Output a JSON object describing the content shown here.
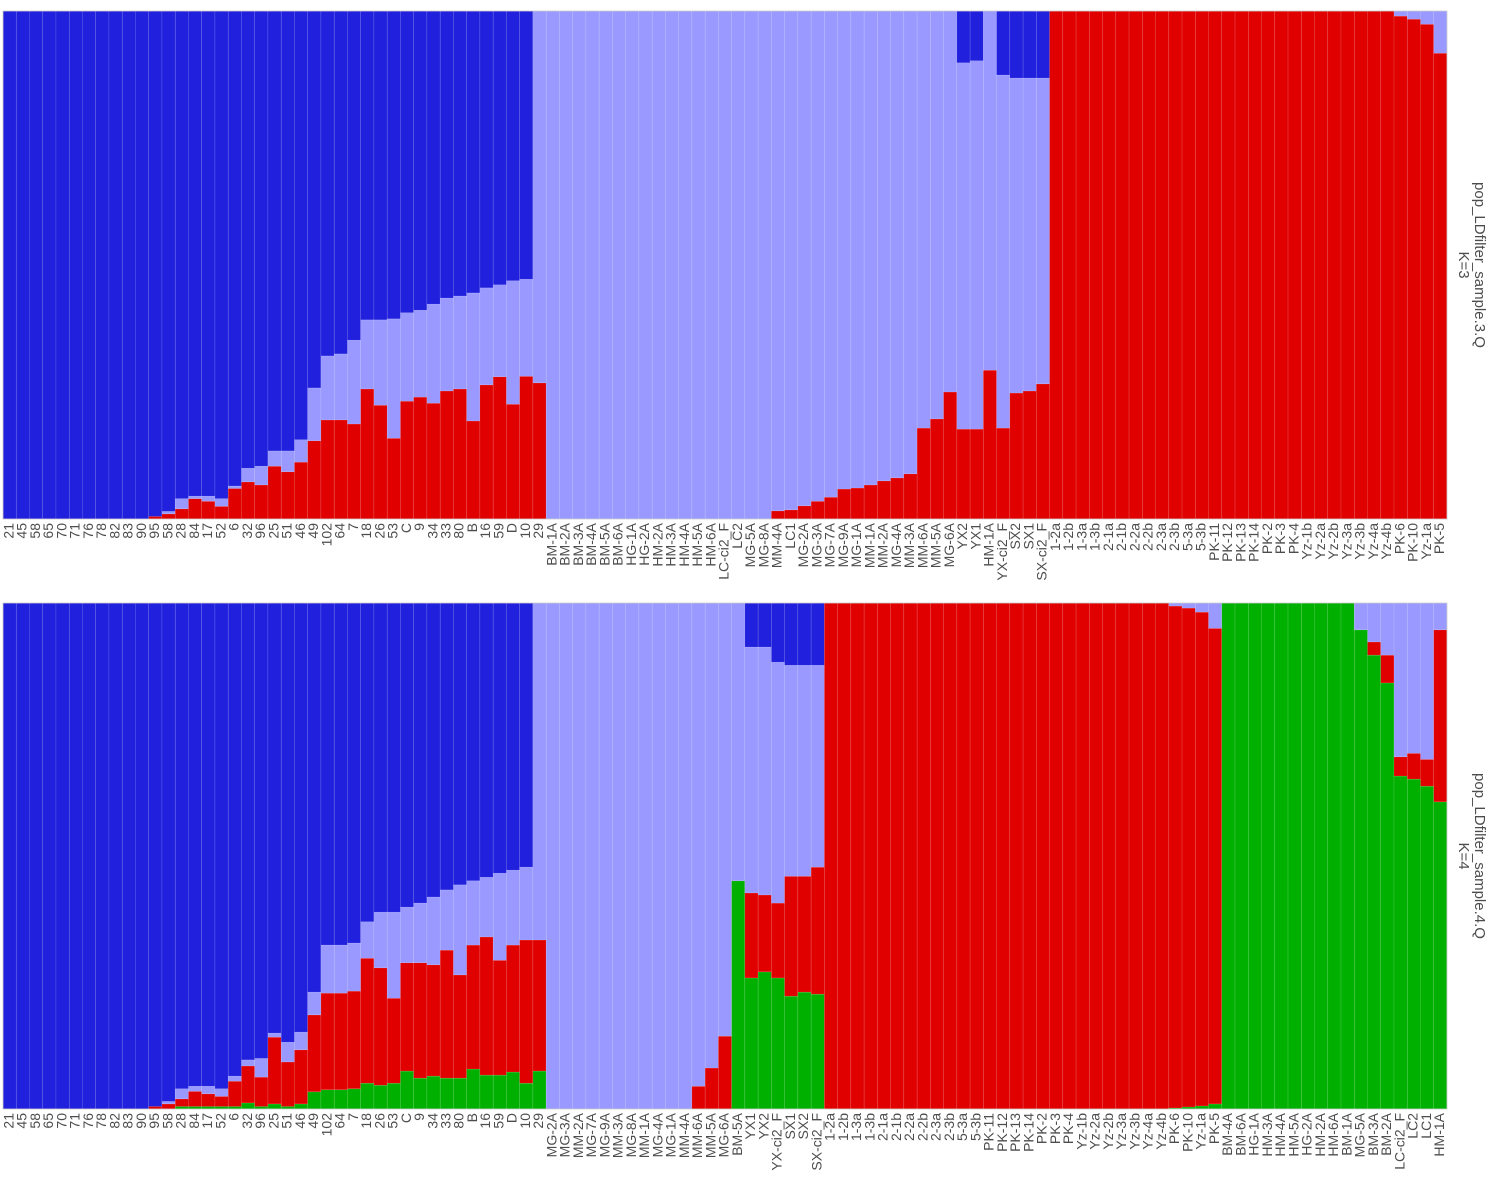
{
  "chart_data": [
    {
      "type": "bar",
      "stacked": true,
      "title": "pop_LDfilter_sample.3.Q",
      "subtitle": "K=3",
      "ylim": [
        0,
        1
      ],
      "categories": [
        "21",
        "45",
        "58",
        "65",
        "70",
        "71",
        "76",
        "78",
        "82",
        "83",
        "90",
        "95",
        "58",
        "28",
        "84",
        "17",
        "52",
        "6",
        "32",
        "96",
        "25",
        "51",
        "46",
        "49",
        "102",
        "64",
        "7",
        "18",
        "26",
        "53",
        "C",
        "9",
        "34",
        "33",
        "80",
        "B",
        "16",
        "59",
        "D",
        "10",
        "29",
        "BM-1A",
        "BM-2A",
        "BM-3A",
        "BM-4A",
        "BM-5A",
        "BM-6A",
        "HG-1A",
        "HG-2A",
        "HM-2A",
        "HM-3A",
        "HM-4A",
        "HM-5A",
        "HM-6A",
        "LC-ci2_F",
        "LC2",
        "MG-5A",
        "MG-8A",
        "MM-4A",
        "LC1",
        "MG-2A",
        "MG-3A",
        "MG-7A",
        "MG-9A",
        "MG-1A",
        "MM-1A",
        "MM-2A",
        "MG-4A",
        "MM-3A",
        "MM-6A",
        "MM-5A",
        "MG-6A",
        "YX2",
        "YX1",
        "HM-1A",
        "YX-ci2_F",
        "SX2",
        "SX1",
        "SX-ci2_F",
        "1-2a",
        "1-2b",
        "1-3a",
        "1-3b",
        "2-1a",
        "2-1b",
        "2-2a",
        "2-2b",
        "2-3a",
        "2-3b",
        "5-3a",
        "5-3b",
        "PK-11",
        "PK-12",
        "PK-13",
        "PK-14",
        "PK-2",
        "PK-3",
        "PK-4",
        "Yz-1b",
        "Yz-2a",
        "Yz-2b",
        "Yz-3a",
        "Yz-3b",
        "Yz-4a",
        "Yz-4b",
        "PK-6",
        "PK-10",
        "Yz-1a",
        "PK-5"
      ],
      "series": [
        {
          "color": "#e00000",
          "values": [
            0,
            0,
            0,
            0,
            0,
            0,
            0,
            0,
            0,
            0,
            0,
            0.005,
            0.01,
            0.02,
            0.04,
            0.035,
            0.025,
            0.06,
            0.073,
            0.067,
            0.104,
            0.093,
            0.112,
            0.154,
            0.195,
            0.195,
            0.187,
            0.256,
            0.224,
            0.159,
            0.232,
            0.24,
            0.228,
            0.252,
            0.256,
            0.193,
            0.264,
            0.28,
            0.226,
            0.281,
            0.268,
            0,
            0,
            0,
            0,
            0,
            0,
            0,
            0,
            0,
            0,
            0,
            0,
            0,
            0,
            0,
            0,
            0,
            0.016,
            0.018,
            0.026,
            0.035,
            0.043,
            0.059,
            0.061,
            0.067,
            0.075,
            0.081,
            0.089,
            0.179,
            0.197,
            0.25,
            0.177,
            0.177,
            0.293,
            0.179,
            0.248,
            0.252,
            0.266,
            1,
            1,
            1,
            1,
            1,
            1,
            1,
            1,
            1,
            1,
            1,
            1,
            1,
            1,
            1,
            1,
            1,
            1,
            1,
            1,
            1,
            1,
            1,
            1,
            1,
            1,
            0.99,
            0.984,
            0.974,
            0.917
          ]
        },
        {
          "color": "#9999ff",
          "values": [
            0,
            0,
            0,
            0,
            0,
            0,
            0,
            0,
            0,
            0,
            0,
            0,
            0.005,
            0.02,
            0.005,
            0.01,
            0.015,
            0.005,
            0.027,
            0.037,
            0.03,
            0.041,
            0.044,
            0.104,
            0.126,
            0.13,
            0.165,
            0.136,
            0.168,
            0.235,
            0.174,
            0.171,
            0.195,
            0.183,
            0.183,
            0.252,
            0.191,
            0.181,
            0.243,
            0.191,
            0.732,
            1,
            1,
            1,
            1,
            1,
            1,
            1,
            1,
            1,
            1,
            1,
            1,
            1,
            1,
            1,
            1,
            1,
            0.984,
            0.982,
            0.974,
            0.965,
            0.957,
            0.941,
            0.939,
            0.933,
            0.925,
            0.919,
            0.911,
            0.821,
            0.803,
            0.75,
            0.721,
            0.725,
            0.707,
            0.695,
            0.62,
            0.616,
            0.602,
            0,
            0,
            0,
            0,
            0,
            0,
            0,
            0,
            0,
            0,
            0,
            0,
            0,
            0,
            0,
            0,
            0,
            0,
            0,
            0,
            0,
            0,
            0,
            0,
            0,
            0,
            0.01,
            0.016,
            0.026,
            0.083
          ]
        },
        {
          "color": "#2020dd",
          "values": [
            1,
            1,
            1,
            1,
            1,
            1,
            1,
            1,
            1,
            1,
            1,
            0.995,
            0.985,
            0.96,
            0.955,
            0.955,
            0.96,
            0.935,
            0.9,
            0.896,
            0.866,
            0.866,
            0.844,
            0.742,
            0.679,
            0.675,
            0.648,
            0.608,
            0.608,
            0.606,
            0.594,
            0.589,
            0.577,
            0.565,
            0.561,
            0.555,
            0.545,
            0.539,
            0.531,
            0.528,
            0,
            0,
            0,
            0,
            0,
            0,
            0,
            0,
            0,
            0,
            0,
            0,
            0,
            0,
            0,
            0,
            0,
            0,
            0,
            0,
            0,
            0,
            0,
            0,
            0,
            0,
            0,
            0,
            0,
            0,
            0,
            0,
            0.102,
            0.098,
            0,
            0.126,
            0.132,
            0.132,
            0.132,
            0,
            0,
            0,
            0,
            0,
            0,
            0,
            0,
            0,
            0,
            0,
            0,
            0,
            0,
            0,
            0,
            0,
            0,
            0,
            0,
            0,
            0,
            0,
            0,
            0,
            0,
            0,
            0,
            0,
            0
          ]
        }
      ]
    },
    {
      "type": "bar",
      "stacked": true,
      "title": "pop_LDfilter_sample.4.Q",
      "subtitle": "K=4",
      "ylim": [
        0,
        1
      ],
      "categories": [
        "21",
        "45",
        "58",
        "65",
        "70",
        "71",
        "76",
        "78",
        "82",
        "83",
        "90",
        "95",
        "58",
        "28",
        "84",
        "17",
        "52",
        "6",
        "32",
        "96",
        "25",
        "51",
        "46",
        "49",
        "102",
        "64",
        "7",
        "18",
        "26",
        "53",
        "C",
        "9",
        "34",
        "33",
        "80",
        "B",
        "16",
        "59",
        "D",
        "10",
        "29",
        "MG-2A",
        "MG-3A",
        "MM-2A",
        "MG-7A",
        "MG-9A",
        "MM-3A",
        "MG-8A",
        "MM-1A",
        "MG-4A",
        "MG-1A",
        "MM-4A",
        "MM-6A",
        "MM-5A",
        "MG-6A",
        "BM-5A",
        "YX1",
        "YX2",
        "YX-ci2_F",
        "SX1",
        "SX2",
        "SX-ci2_F",
        "1-2a",
        "1-2b",
        "1-3a",
        "1-3b",
        "2-1a",
        "2-1b",
        "2-2a",
        "2-2b",
        "2-3a",
        "2-3b",
        "5-3a",
        "5-3b",
        "PK-11",
        "PK-12",
        "PK-13",
        "PK-14",
        "PK-2",
        "PK-3",
        "PK-4",
        "Yz-1b",
        "Yz-2a",
        "Yz-2b",
        "Yz-3a",
        "Yz-3b",
        "Yz-4a",
        "Yz-4b",
        "PK-6",
        "PK-10",
        "Yz-1a",
        "PK-5",
        "BM-4A",
        "BM-6A",
        "HG-1A",
        "HM-3A",
        "HM-4A",
        "HM-5A",
        "HG-2A",
        "HM-2A",
        "HM-6A",
        "BM-1A",
        "MG-5A",
        "BM-3A",
        "BM-2A",
        "LC-ci2_F",
        "LC2",
        "LC1",
        "HM-1A"
      ],
      "series": [
        {
          "color": "#00b000",
          "values": [
            0,
            0,
            0,
            0,
            0,
            0,
            0,
            0,
            0,
            0,
            0,
            0,
            0,
            0.005,
            0.005,
            0.005,
            0.005,
            0.005,
            0.012,
            0.005,
            0.01,
            0.005,
            0.01,
            0.034,
            0.038,
            0.038,
            0.04,
            0.051,
            0.047,
            0.051,
            0.075,
            0.061,
            0.065,
            0.061,
            0.061,
            0.079,
            0.067,
            0.067,
            0.073,
            0.051,
            0.075,
            0,
            0,
            0,
            0,
            0,
            0,
            0,
            0,
            0,
            0,
            0,
            0,
            0,
            0,
            0.451,
            0.259,
            0.271,
            0.259,
            0.223,
            0.231,
            0.227,
            0,
            0,
            0,
            0,
            0,
            0,
            0,
            0,
            0,
            0,
            0,
            0,
            0,
            0,
            0,
            0,
            0,
            0,
            0,
            0,
            0,
            0,
            0,
            0,
            0,
            0,
            0.002,
            0.004,
            0.006,
            0.01,
            1,
            1,
            1,
            1,
            1,
            1,
            1,
            1,
            1,
            1,
            0.947,
            0.897,
            0.842,
            0.658,
            0.652,
            0.638,
            0.607
          ]
        },
        {
          "color": "#e00000",
          "values": [
            0,
            0,
            0,
            0,
            0,
            0,
            0,
            0,
            0,
            0,
            0,
            0.005,
            0.01,
            0.015,
            0.03,
            0.025,
            0.02,
            0.05,
            0.073,
            0.058,
            0.132,
            0.088,
            0.107,
            0.152,
            0.191,
            0.191,
            0.193,
            0.247,
            0.232,
            0.168,
            0.214,
            0.228,
            0.22,
            0.253,
            0.204,
            0.245,
            0.273,
            0.227,
            0.251,
            0.283,
            0.259,
            0,
            0,
            0,
            0,
            0,
            0,
            0,
            0,
            0,
            0,
            0,
            0.045,
            0.081,
            0.144,
            0,
            0.168,
            0.152,
            0.148,
            0.237,
            0.229,
            0.251,
            1,
            1,
            1,
            1,
            1,
            1,
            1,
            1,
            1,
            1,
            1,
            1,
            1,
            1,
            1,
            1,
            1,
            1,
            1,
            1,
            1,
            1,
            1,
            1,
            1,
            1,
            0.992,
            0.986,
            0.976,
            0.94,
            0,
            0,
            0,
            0,
            0,
            0,
            0,
            0,
            0,
            0,
            0,
            0.026,
            0.055,
            0.038,
            0.051,
            0.053,
            0.34
          ]
        },
        {
          "color": "#9999ff",
          "values": [
            0,
            0,
            0,
            0,
            0,
            0,
            0,
            0,
            0,
            0,
            0,
            0,
            0.005,
            0.02,
            0.01,
            0.015,
            0.015,
            0.01,
            0.012,
            0.037,
            0.008,
            0.039,
            0.035,
            0.045,
            0.095,
            0.095,
            0.095,
            0.072,
            0.11,
            0.17,
            0.11,
            0.118,
            0.134,
            0.119,
            0.178,
            0.127,
            0.118,
            0.172,
            0.148,
            0.144,
            0.666,
            1,
            1,
            1,
            1,
            1,
            1,
            1,
            1,
            1,
            1,
            1,
            0.955,
            0.919,
            0.856,
            0.549,
            0.486,
            0.49,
            0.476,
            0.417,
            0.417,
            0.399,
            0,
            0,
            0,
            0,
            0,
            0,
            0,
            0,
            0,
            0,
            0,
            0,
            0,
            0,
            0,
            0,
            0,
            0,
            0,
            0,
            0,
            0,
            0,
            0,
            0,
            0,
            0.006,
            0.01,
            0.018,
            0.05,
            0,
            0,
            0,
            0,
            0,
            0,
            0,
            0,
            0,
            0,
            0.053,
            0.077,
            0.103,
            0.304,
            0.297,
            0.309,
            0.053
          ]
        },
        {
          "color": "#2020dd",
          "values": [
            1,
            1,
            1,
            1,
            1,
            1,
            1,
            1,
            1,
            1,
            1,
            0.995,
            0.985,
            0.96,
            0.955,
            0.955,
            0.96,
            0.935,
            0.903,
            0.9,
            0.85,
            0.868,
            0.848,
            0.769,
            0.676,
            0.676,
            0.672,
            0.63,
            0.611,
            0.611,
            0.601,
            0.593,
            0.581,
            0.567,
            0.557,
            0.549,
            0.542,
            0.534,
            0.528,
            0.522,
            0,
            0,
            0,
            0,
            0,
            0,
            0,
            0,
            0,
            0,
            0,
            0,
            0,
            0,
            0,
            0,
            0.087,
            0.087,
            0.117,
            0.123,
            0.123,
            0.123,
            0,
            0,
            0,
            0,
            0,
            0,
            0,
            0,
            0,
            0,
            0,
            0,
            0,
            0,
            0,
            0,
            0,
            0,
            0,
            0,
            0,
            0,
            0,
            0,
            0,
            0,
            0,
            0,
            0,
            0,
            0,
            0,
            0,
            0,
            0,
            0,
            0,
            0,
            0,
            0,
            0,
            0,
            0,
            0,
            0,
            0,
            0
          ]
        }
      ]
    }
  ]
}
